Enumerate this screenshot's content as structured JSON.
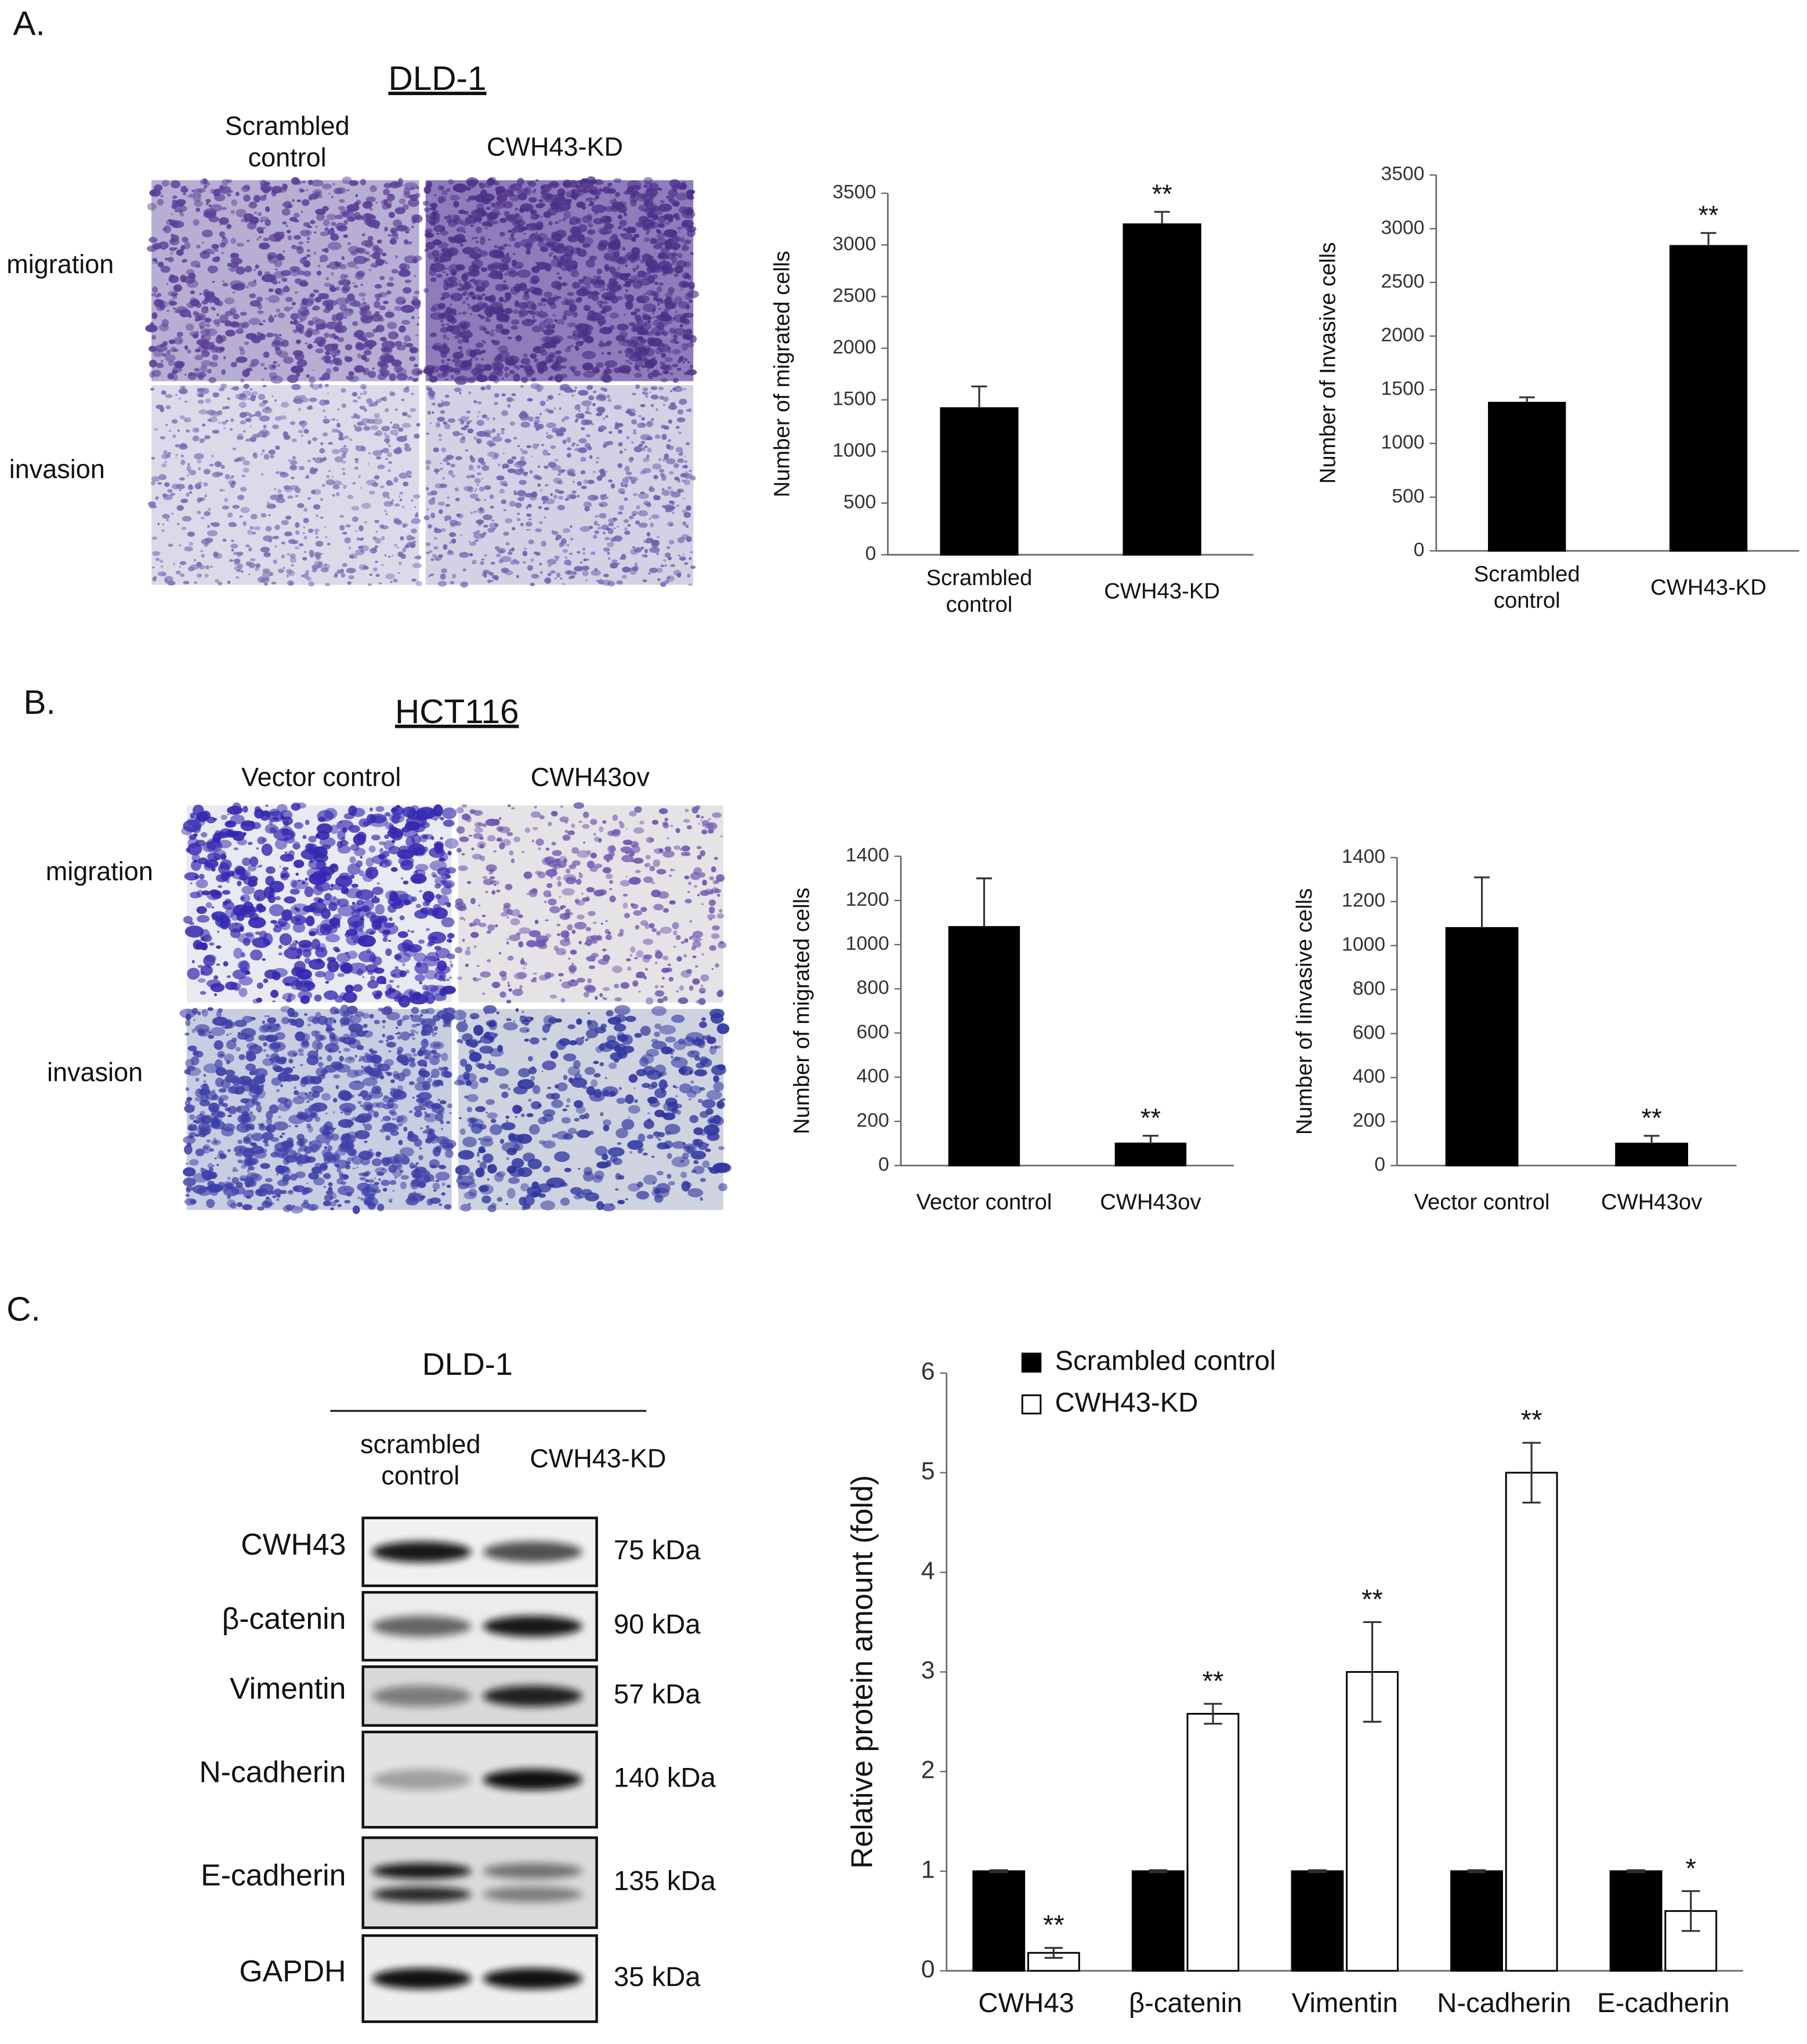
{
  "panels": [
    {
      "label": "A.",
      "title": "DLD-1",
      "columns": [
        "Scrambled\ncontrol",
        "CWH43-KD"
      ],
      "rows": [
        "migration",
        "invasion"
      ]
    },
    {
      "label": "B.",
      "title": "HCT116",
      "columns": [
        "Vector control",
        "CWH43ov"
      ],
      "rows": [
        "migration",
        "invasion"
      ]
    },
    {
      "label": "C.",
      "title": "DLD-1",
      "columns": [
        "scrambled\ncontrol",
        "CWH43-KD"
      ],
      "rows": [
        {
          "protein": "CWH43",
          "size": "75 kDa"
        },
        {
          "protein": "β-catenin",
          "size": "90 kDa"
        },
        {
          "protein": "Vimentin",
          "size": "57 kDa"
        },
        {
          "protein": "N-cadherin",
          "size": "140 kDa"
        },
        {
          "protein": "E-cadherin",
          "size": "135 kDa"
        },
        {
          "protein": "GAPDH",
          "size": "35 kDa"
        }
      ]
    }
  ],
  "chart_data": [
    {
      "type": "bar",
      "y_label": "Number of migrated cells",
      "categories": [
        "Scrambled\ncontrol",
        "CWH43-KD"
      ],
      "values": [
        1420,
        3200
      ],
      "errors": [
        210,
        120
      ],
      "error_direction": "up",
      "significance": [
        null,
        "**"
      ],
      "color": "#000000",
      "ylim": [
        0,
        3500
      ],
      "yticks": [
        0,
        500,
        1000,
        1500,
        2000,
        2500,
        3000,
        3500
      ]
    },
    {
      "type": "bar",
      "y_label": "Number of Invasive cells",
      "categories": [
        "Scrambled\ncontrol",
        "CWH43-KD"
      ],
      "values": [
        1380,
        2840
      ],
      "errors": [
        50,
        120
      ],
      "error_direction": "up",
      "significance": [
        null,
        "**"
      ],
      "color": "#000000",
      "ylim": [
        0,
        3500
      ],
      "yticks": [
        0,
        500,
        1000,
        1500,
        2000,
        2500,
        3000,
        3500
      ]
    },
    {
      "type": "bar",
      "y_label": "Number of migrated cells",
      "categories": [
        "Vector control",
        "CWH43ov"
      ],
      "values": [
        1080,
        100
      ],
      "errors": [
        220,
        35
      ],
      "error_direction": "up",
      "significance": [
        null,
        "**"
      ],
      "color": "#000000",
      "ylim": [
        0,
        1400
      ],
      "yticks": [
        0,
        200,
        400,
        600,
        800,
        1000,
        1200,
        1400
      ]
    },
    {
      "type": "bar",
      "y_label": "Number of Iinvasive cells",
      "categories": [
        "Vector control",
        "CWH43ov"
      ],
      "values": [
        1080,
        100
      ],
      "errors": [
        230,
        35
      ],
      "error_direction": "up",
      "significance": [
        null,
        "**"
      ],
      "color": "#000000",
      "ylim": [
        0,
        1400
      ],
      "yticks": [
        0,
        200,
        400,
        600,
        800,
        1000,
        1200,
        1400
      ]
    },
    {
      "type": "grouped_bar",
      "y_label": "Relative protein amount (fold)",
      "categories": [
        "CWH43",
        "β-catenin",
        "Vimentin",
        "N-cadherin",
        "E-cadherin"
      ],
      "series": [
        {
          "name": "Scrambled control",
          "color": "#000000",
          "values": [
            1,
            1,
            1,
            1,
            1
          ],
          "errors": [
            0.01,
            0.01,
            0.01,
            0.01,
            0.01
          ]
        },
        {
          "name": "CWH43-KD",
          "color": "#ffffff",
          "values": [
            0.18,
            2.58,
            3.0,
            5.0,
            0.6
          ],
          "errors": [
            0.05,
            0.1,
            0.5,
            0.3,
            0.2
          ],
          "significance": [
            "**",
            "**",
            "**",
            "**",
            "*"
          ]
        }
      ],
      "error_direction": "both",
      "legend": "top-left",
      "ylim": [
        0,
        6
      ],
      "yticks": [
        0,
        1,
        2,
        3,
        4,
        5,
        6
      ]
    }
  ]
}
